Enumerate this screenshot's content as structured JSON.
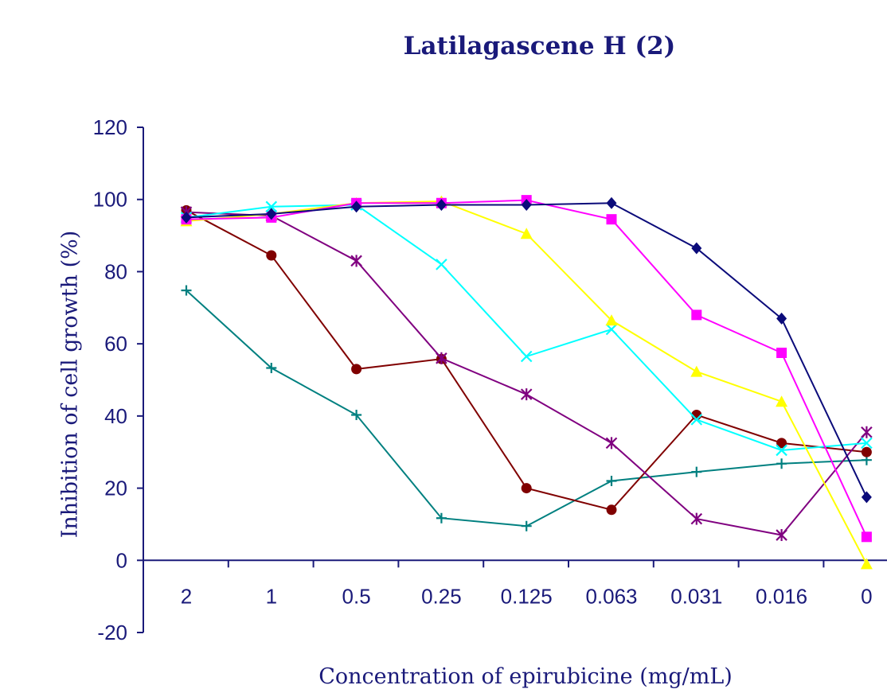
{
  "chart_data": {
    "type": "line",
    "title": "Latilagascene H (2)",
    "xlabel": "Concentration of epirubicine (mg/mL)",
    "ylabel": "Inhibition of cell growth (%)",
    "categories": [
      "2",
      "1",
      "0.5",
      "0.25",
      "0.125",
      "0.063",
      "0.031",
      "0.016",
      "0"
    ],
    "ylim": [
      -20,
      120
    ],
    "yticks": [
      -20,
      0,
      20,
      40,
      60,
      80,
      100,
      120
    ],
    "grid": false,
    "legend": "none",
    "series": [
      {
        "color": "#0b0b7a",
        "marker": "diamond",
        "values": [
          95,
          96,
          98,
          98.5,
          98.5,
          99,
          86.5,
          67,
          17.5
        ]
      },
      {
        "color": "#ff00ff",
        "marker": "square",
        "values": [
          94.5,
          95,
          99,
          99,
          99.8,
          94.5,
          68,
          57.5,
          6.5
        ]
      },
      {
        "color": "#ffff00",
        "marker": "triangle",
        "values": [
          94,
          96,
          99,
          99.5,
          90.5,
          66.5,
          52.3,
          44,
          -1
        ]
      },
      {
        "color": "#00ffff",
        "marker": "x",
        "values": [
          95,
          98,
          98.5,
          82,
          56.5,
          64,
          39,
          30.5,
          32.5
        ]
      },
      {
        "color": "#800080",
        "marker": "star",
        "values": [
          96.5,
          95.5,
          83,
          56,
          46,
          32.5,
          11.5,
          7,
          35.5
        ]
      },
      {
        "color": "#800000",
        "marker": "circle",
        "values": [
          97,
          84.5,
          53,
          55.8,
          20,
          14,
          40.3,
          32.5,
          30
        ]
      },
      {
        "color": "#008080",
        "marker": "plus",
        "values": [
          74.8,
          53.3,
          40.3,
          11.7,
          9.5,
          22,
          24.5,
          26.8,
          27.8
        ]
      }
    ]
  }
}
